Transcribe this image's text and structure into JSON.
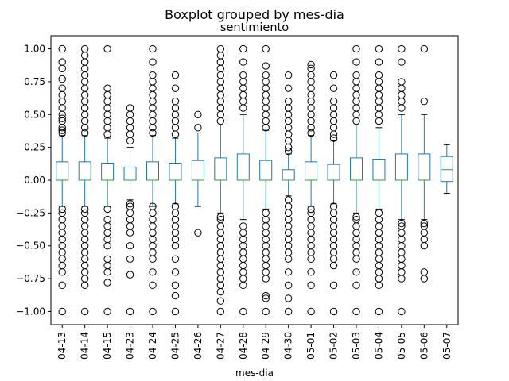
{
  "chart_data": {
    "type": "box",
    "suptitle": "Boxplot grouped by mes-dia",
    "title": "sentimiento",
    "xlabel": "mes-dia",
    "ylabel": "",
    "ylim": [
      -1.1,
      1.1
    ],
    "yticks": [
      -1.0,
      -0.75,
      -0.5,
      -0.25,
      0.0,
      0.25,
      0.5,
      0.75,
      1.0
    ],
    "ytick_labels": [
      "−1.00",
      "−0.75",
      "−0.50",
      "−0.25",
      "0.00",
      "0.25",
      "0.50",
      "0.75",
      "1.00"
    ],
    "grid": false,
    "colors": {
      "box": "#1f77b4",
      "median": "#2ca02c",
      "outlier": "#000000"
    },
    "categories": [
      "04-13",
      "04-14",
      "04-15",
      "04-23",
      "04-24",
      "04-25",
      "04-26",
      "04-27",
      "04-28",
      "04-29",
      "04-30",
      "05-01",
      "05-02",
      "05-03",
      "05-04",
      "05-05",
      "05-06",
      "05-07"
    ],
    "boxes": [
      {
        "category": "04-13",
        "whislo": -0.2,
        "q1": 0.0,
        "med": 0.0,
        "q3": 0.14,
        "whishi": 0.34,
        "fliers": [
          1.0,
          0.9,
          0.85,
          0.77,
          0.7,
          0.65,
          0.6,
          0.55,
          0.5,
          0.47,
          0.45,
          0.4,
          0.38,
          0.36,
          -0.22,
          -0.25,
          -0.3,
          -0.35,
          -0.4,
          -0.45,
          -0.5,
          -0.55,
          -0.6,
          -0.65,
          -0.7,
          -0.8,
          -1.0
        ]
      },
      {
        "category": "04-14",
        "whislo": -0.2,
        "q1": 0.0,
        "med": 0.0,
        "q3": 0.14,
        "whishi": 0.34,
        "fliers": [
          1.0,
          0.95,
          0.9,
          0.85,
          0.8,
          0.75,
          0.7,
          0.65,
          0.6,
          0.55,
          0.5,
          0.45,
          0.4,
          0.36,
          -0.22,
          -0.25,
          -0.3,
          -0.35,
          -0.4,
          -0.45,
          -0.5,
          -0.55,
          -0.6,
          -0.65,
          -0.7,
          -0.75,
          -0.8,
          -1.0
        ]
      },
      {
        "category": "04-15",
        "whislo": -0.2,
        "q1": 0.0,
        "med": 0.0,
        "q3": 0.13,
        "whishi": 0.32,
        "fliers": [
          1.0,
          0.7,
          0.65,
          0.6,
          0.55,
          0.5,
          0.45,
          0.4,
          0.35,
          -0.22,
          -0.3,
          -0.35,
          -0.4,
          -0.45,
          -0.5,
          -0.6,
          -0.65,
          -0.7,
          -0.78,
          -1.0
        ]
      },
      {
        "category": "04-23",
        "whislo": -0.15,
        "q1": 0.0,
        "med": 0.0,
        "q3": 0.1,
        "whishi": 0.25,
        "fliers": [
          0.55,
          0.5,
          0.45,
          0.4,
          0.35,
          0.3,
          -0.18,
          -0.2,
          -0.25,
          -0.3,
          -0.35,
          -0.4,
          -0.5,
          -0.6,
          -0.72,
          -1.0
        ]
      },
      {
        "category": "04-24",
        "whislo": -0.2,
        "q1": 0.0,
        "med": 0.0,
        "q3": 0.14,
        "whishi": 0.34,
        "fliers": [
          1.0,
          0.9,
          0.8,
          0.75,
          0.7,
          0.65,
          0.6,
          0.55,
          0.5,
          0.45,
          0.4,
          0.36,
          -0.2,
          -0.25,
          -0.3,
          -0.35,
          -0.4,
          -0.45,
          -0.5,
          -0.55,
          -0.6,
          -0.7,
          -0.8,
          -1.0
        ]
      },
      {
        "category": "04-25",
        "whislo": -0.18,
        "q1": 0.0,
        "med": 0.0,
        "q3": 0.13,
        "whishi": 0.32,
        "fliers": [
          0.8,
          0.7,
          0.6,
          0.55,
          0.5,
          0.45,
          0.4,
          0.35,
          -0.2,
          -0.25,
          -0.3,
          -0.35,
          -0.4,
          -0.45,
          -0.5,
          -0.6,
          -0.7,
          -0.8,
          -0.88,
          -1.0
        ]
      },
      {
        "category": "04-26",
        "whislo": -0.2,
        "q1": 0.0,
        "med": 0.0,
        "q3": 0.15,
        "whishi": 0.36,
        "fliers": [
          0.5,
          0.4,
          -0.4
        ]
      },
      {
        "category": "04-27",
        "whislo": -0.25,
        "q1": 0.0,
        "med": 0.0,
        "q3": 0.17,
        "whishi": 0.42,
        "fliers": [
          1.0,
          0.95,
          0.9,
          0.85,
          0.8,
          0.75,
          0.7,
          0.65,
          0.6,
          0.55,
          0.5,
          0.45,
          -0.28,
          -0.3,
          -0.35,
          -0.4,
          -0.45,
          -0.5,
          -0.55,
          -0.6,
          -0.65,
          -0.7,
          -0.75,
          -0.8,
          -0.85,
          -0.92,
          -1.0
        ]
      },
      {
        "category": "04-28",
        "whislo": -0.3,
        "q1": 0.0,
        "med": 0.0,
        "q3": 0.2,
        "whishi": 0.5,
        "fliers": [
          1.0,
          0.9,
          0.8,
          0.75,
          0.7,
          0.65,
          0.6,
          0.55,
          -0.35,
          -0.4,
          -0.45,
          -0.5,
          -0.55,
          -0.6,
          -0.65,
          -0.7,
          -0.75,
          -0.8,
          -1.0
        ]
      },
      {
        "category": "04-29",
        "whislo": -0.22,
        "q1": 0.0,
        "med": 0.0,
        "q3": 0.15,
        "whishi": 0.38,
        "fliers": [
          1.0,
          0.87,
          0.8,
          0.75,
          0.7,
          0.65,
          0.6,
          0.55,
          0.5,
          0.45,
          0.4,
          -0.25,
          -0.3,
          -0.35,
          -0.4,
          -0.45,
          -0.5,
          -0.55,
          -0.6,
          -0.65,
          -0.7,
          -0.75,
          -0.88,
          -0.9,
          -1.0
        ]
      },
      {
        "category": "04-30",
        "whislo": -0.12,
        "q1": 0.0,
        "med": 0.0,
        "q3": 0.08,
        "whishi": 0.2,
        "fliers": [
          0.8,
          0.7,
          0.6,
          0.55,
          0.5,
          0.45,
          0.4,
          0.35,
          0.3,
          0.25,
          0.22,
          -0.15,
          -0.2,
          -0.25,
          -0.3,
          -0.35,
          -0.4,
          -0.45,
          -0.5,
          -0.55,
          -0.6,
          -0.7,
          -0.8,
          -0.9,
          -1.0
        ]
      },
      {
        "category": "05-01",
        "whislo": -0.2,
        "q1": 0.0,
        "med": 0.0,
        "q3": 0.14,
        "whishi": 0.34,
        "fliers": [
          0.88,
          0.85,
          0.8,
          0.75,
          0.7,
          0.65,
          0.6,
          0.55,
          0.5,
          0.45,
          0.4,
          0.36,
          -0.22,
          -0.25,
          -0.3,
          -0.35,
          -0.4,
          -0.45,
          -0.5,
          -0.55,
          -0.6,
          -0.7,
          -0.8,
          -1.0
        ]
      },
      {
        "category": "05-02",
        "whislo": -0.18,
        "q1": 0.0,
        "med": 0.0,
        "q3": 0.12,
        "whishi": 0.3,
        "fliers": [
          0.8,
          0.7,
          0.6,
          0.55,
          0.5,
          0.45,
          0.4,
          0.35,
          0.32,
          -0.2,
          -0.25,
          -0.3,
          -0.35,
          -0.4,
          -0.45,
          -0.5,
          -0.55,
          -0.6,
          -0.65,
          -0.8,
          -1.0
        ]
      },
      {
        "category": "05-03",
        "whislo": -0.25,
        "q1": 0.0,
        "med": 0.0,
        "q3": 0.17,
        "whishi": 0.42,
        "fliers": [
          1.0,
          0.9,
          0.8,
          0.75,
          0.7,
          0.65,
          0.6,
          0.55,
          0.5,
          0.45,
          -0.28,
          -0.3,
          -0.35,
          -0.4,
          -0.45,
          -0.5,
          -0.55,
          -0.6,
          -0.7,
          -0.8,
          -1.0
        ]
      },
      {
        "category": "05-04",
        "whislo": -0.22,
        "q1": 0.0,
        "med": 0.0,
        "q3": 0.16,
        "whishi": 0.4,
        "fliers": [
          1.0,
          0.9,
          0.8,
          0.75,
          0.7,
          0.65,
          0.6,
          0.55,
          0.5,
          0.45,
          -0.25,
          -0.3,
          -0.35,
          -0.4,
          -0.45,
          -0.5,
          -0.55,
          -0.6,
          -0.65,
          -0.7,
          -0.75,
          -0.8,
          -1.0
        ]
      },
      {
        "category": "05-05",
        "whislo": -0.3,
        "q1": 0.0,
        "med": 0.0,
        "q3": 0.2,
        "whishi": 0.5,
        "fliers": [
          1.0,
          0.9,
          0.75,
          0.7,
          0.65,
          0.6,
          0.55,
          -0.33,
          -0.35,
          -0.4,
          -0.45,
          -0.5,
          -0.55,
          -0.6,
          -0.65,
          -0.7,
          -0.75,
          -1.0
        ]
      },
      {
        "category": "05-06",
        "whislo": -0.3,
        "q1": 0.0,
        "med": 0.0,
        "q3": 0.2,
        "whishi": 0.5,
        "fliers": [
          1.0,
          0.6,
          -0.33,
          -0.35,
          -0.4,
          -0.45,
          -0.5,
          -0.7,
          -0.75
        ]
      },
      {
        "category": "05-07",
        "whislo": -0.1,
        "q1": -0.01,
        "med": 0.08,
        "q3": 0.18,
        "whishi": 0.27,
        "fliers": []
      }
    ]
  }
}
